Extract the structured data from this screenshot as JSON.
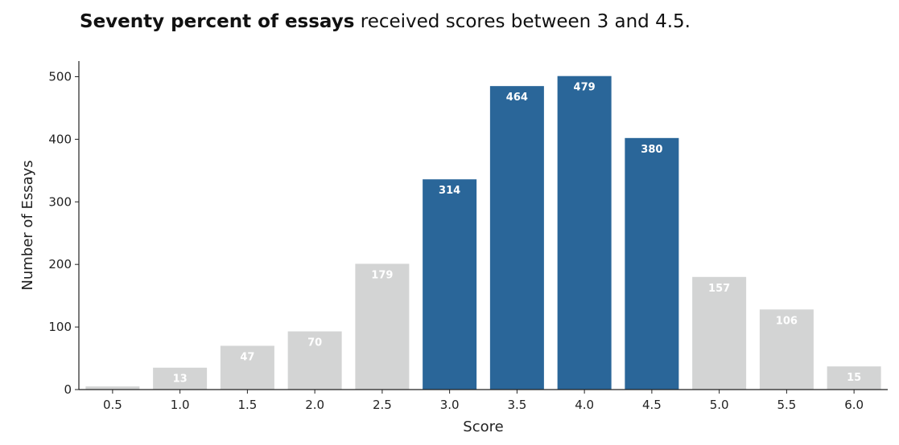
{
  "title": {
    "bold": "Seventy percent of essays",
    "rest": " received scores between 3 and 4.5."
  },
  "colors": {
    "highlight": "#2a6699",
    "muted": "#d3d4d4",
    "axis": "#222222"
  },
  "chart_data": {
    "type": "bar",
    "categories": [
      "0.5",
      "1.0",
      "1.5",
      "2.0",
      "2.5",
      "3.0",
      "3.5",
      "4.0",
      "4.5",
      "5.0",
      "5.5",
      "6.0"
    ],
    "values": [
      5,
      35,
      70,
      93,
      201,
      336,
      485,
      501,
      402,
      180,
      128,
      37
    ],
    "data_labels": [
      "",
      "13",
      "47",
      "70",
      "179",
      "314",
      "464",
      "479",
      "380",
      "157",
      "106",
      "15"
    ],
    "highlighted": [
      "3.0",
      "3.5",
      "4.0",
      "4.5"
    ],
    "xlabel": "Score",
    "ylabel": "Number of Essays",
    "ylim": [
      0,
      525
    ],
    "yticks": [
      0,
      100,
      200,
      300,
      400,
      500
    ],
    "grid": false
  }
}
